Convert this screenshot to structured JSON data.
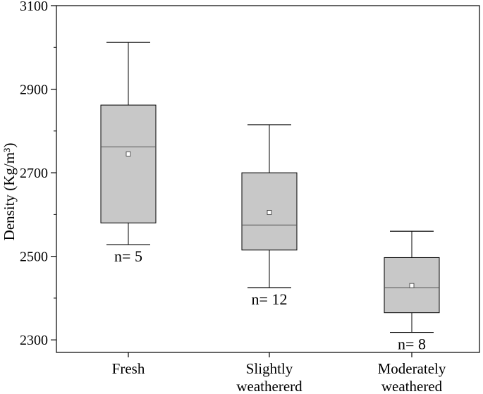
{
  "chart_data": {
    "type": "boxplot",
    "title": "",
    "xlabel": "",
    "ylabel": "Density (Kg/m³)",
    "ylim": [
      2270,
      3100
    ],
    "yticks": [
      2300,
      2500,
      2700,
      2900,
      3100
    ],
    "categories": [
      {
        "lines": [
          "Fresh"
        ]
      },
      {
        "lines": [
          "Slightly",
          "weathererd"
        ]
      },
      {
        "lines": [
          "Moderately",
          "weathered"
        ]
      }
    ],
    "boxes": [
      {
        "category": "Fresh",
        "whisker_low": 2528,
        "q1": 2580,
        "median": 2762,
        "mean": 2745,
        "q3": 2862,
        "whisker_high": 3012,
        "n_label": "n= 5"
      },
      {
        "category": "Slightly weathererd",
        "whisker_low": 2425,
        "q1": 2515,
        "median": 2575,
        "mean": 2605,
        "q3": 2700,
        "whisker_high": 2815,
        "n_label": "n= 12"
      },
      {
        "category": "Moderately weathered",
        "whisker_low": 2318,
        "q1": 2365,
        "median": 2425,
        "mean": 2430,
        "q3": 2497,
        "whisker_high": 2560,
        "n_label": "n= 8"
      }
    ],
    "colors": {
      "box_fill": "#c8c8c8",
      "stroke": "#000000",
      "median": "#555555"
    },
    "grid": false,
    "legend": "none"
  }
}
